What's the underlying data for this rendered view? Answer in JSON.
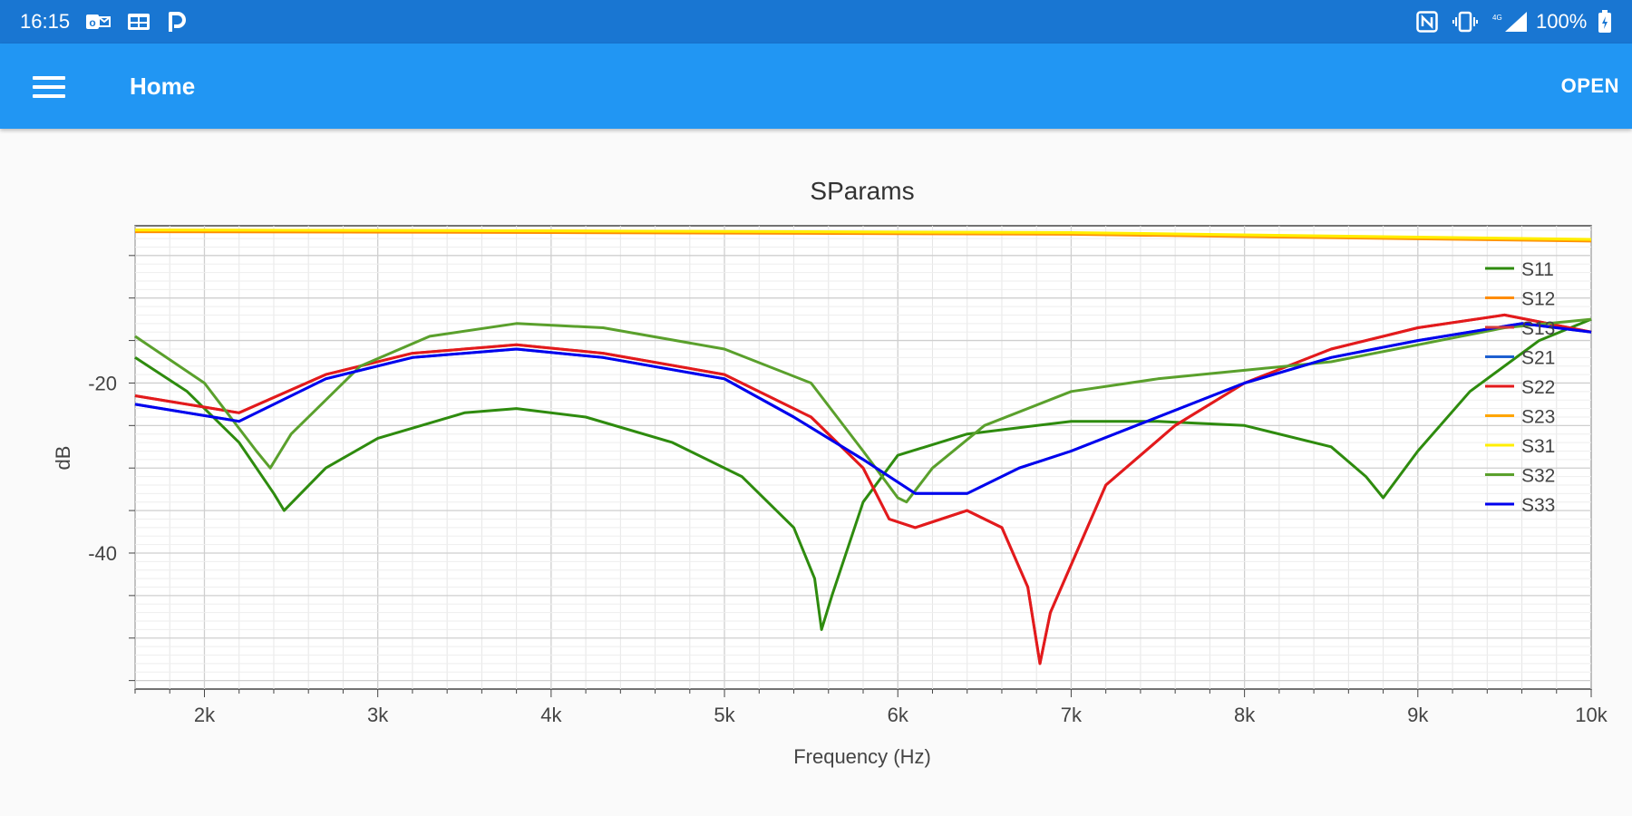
{
  "status_bar": {
    "time": "16:15",
    "battery": "100%",
    "left_icons": [
      "outlook-icon",
      "calendar-icon",
      "parking-icon"
    ],
    "right_icons": [
      "nfc-icon",
      "vibrate-icon",
      "signal-icon",
      "battery-icon"
    ]
  },
  "app_bar": {
    "title": "Home",
    "open_label": "OPEN",
    "menu_icon": "hamburger-menu-icon"
  },
  "chart_data": {
    "type": "line",
    "title": "SParams",
    "xlabel": "Frequency (Hz)",
    "ylabel": "dB",
    "x_ticks": [
      2000,
      3000,
      4000,
      5000,
      6000,
      7000,
      8000,
      9000,
      10000
    ],
    "x_tick_labels": [
      "2k",
      "3k",
      "4k",
      "5k",
      "6k",
      "7k",
      "8k",
      "9k",
      "10k"
    ],
    "y_ticks": [
      -20,
      -40
    ],
    "y_tick_labels": [
      "-20",
      "-40"
    ],
    "xlim": [
      1600,
      10000
    ],
    "ylim": [
      -56,
      -1.5
    ],
    "grid": true,
    "legend_position": "top-right",
    "series": [
      {
        "name": "S11",
        "color": "#2e8b0e",
        "x": [
          1600,
          1900,
          2200,
          2400,
          2460,
          2700,
          3000,
          3500,
          3800,
          4200,
          4700,
          5100,
          5400,
          5520,
          5560,
          5620,
          5800,
          6000,
          6400,
          7000,
          7500,
          8000,
          8500,
          8700,
          8800,
          9000,
          9300,
          9700,
          10000
        ],
        "y": [
          -17,
          -21,
          -27,
          -33,
          -35,
          -30,
          -26.5,
          -23.5,
          -23,
          -24,
          -27,
          -31,
          -37,
          -43,
          -49,
          -45,
          -34,
          -28.5,
          -26,
          -24.5,
          -24.5,
          -25,
          -27.5,
          -31,
          -33.5,
          -28,
          -21,
          -15,
          -12.5
        ]
      },
      {
        "name": "S12",
        "color": "#ff8c00",
        "x": [
          1600,
          4000,
          7000,
          10000
        ],
        "y": [
          -2.2,
          -2.3,
          -2.5,
          -3.3
        ]
      },
      {
        "name": "S13",
        "color": "#d43a3a",
        "x": [
          1600,
          2200,
          2700,
          3200,
          3800,
          4300,
          5000,
          5500,
          5800,
          5950,
          6100,
          6400,
          6600,
          6750,
          6820,
          6880,
          7200,
          7600,
          8000,
          8500,
          9000,
          9500,
          10000
        ],
        "y": [
          -21.5,
          -23.5,
          -19,
          -16.5,
          -15.5,
          -16.5,
          -19,
          -24,
          -30,
          -36,
          -37,
          -35,
          -37,
          -44,
          -53,
          -47,
          -32,
          -25,
          -20,
          -16,
          -13.5,
          -12,
          -14
        ]
      },
      {
        "name": "S21",
        "color": "#1e5fd0",
        "x": [
          1600,
          2200,
          2700,
          3200,
          3800,
          4300,
          5000,
          5400,
          5800,
          6100,
          6400,
          6700,
          7000,
          7500,
          8000,
          8500,
          9000,
          9600,
          10000
        ],
        "y": [
          -22.5,
          -24.5,
          -19.5,
          -17,
          -16,
          -17,
          -19.5,
          -24,
          -29,
          -33,
          -33,
          -30,
          -28,
          -24,
          -20,
          -17,
          -15,
          -13,
          -14
        ]
      },
      {
        "name": "S22",
        "color": "#e31a1c",
        "x": [
          1600,
          2200,
          2700,
          3200,
          3800,
          4300,
          5000,
          5500,
          5800,
          5950,
          6100,
          6400,
          6600,
          6750,
          6820,
          6880,
          7200,
          7600,
          8000,
          8500,
          9000,
          9500,
          10000
        ],
        "y": [
          -21.5,
          -23.5,
          -19,
          -16.5,
          -15.5,
          -16.5,
          -19,
          -24,
          -30,
          -36,
          -37,
          -35,
          -37,
          -44,
          -53,
          -47,
          -32,
          -25,
          -20,
          -16,
          -13.5,
          -12,
          -14
        ]
      },
      {
        "name": "S23",
        "color": "#ffa500",
        "x": [
          1600,
          4000,
          7000,
          10000
        ],
        "y": [
          -2.0,
          -2.1,
          -2.4,
          -3.2
        ]
      },
      {
        "name": "S31",
        "color": "#ffee00",
        "x": [
          1600,
          4000,
          7000,
          10000
        ],
        "y": [
          -2.0,
          -2.1,
          -2.3,
          -3.1
        ]
      },
      {
        "name": "S32",
        "color": "#5aa02c",
        "x": [
          1600,
          2000,
          2300,
          2380,
          2500,
          2900,
          3300,
          3800,
          4300,
          5000,
          5500,
          5800,
          6000,
          6050,
          6200,
          6500,
          7000,
          7500,
          8000,
          8500,
          9000,
          9500,
          10000
        ],
        "y": [
          -14.5,
          -20,
          -28,
          -30,
          -26,
          -18,
          -14.5,
          -13,
          -13.5,
          -16,
          -20,
          -28,
          -33.5,
          -34,
          -30,
          -25,
          -21,
          -19.5,
          -18.5,
          -17.5,
          -15.5,
          -13.5,
          -12.5
        ]
      },
      {
        "name": "S33",
        "color": "#0000ee",
        "x": [
          1600,
          2200,
          2700,
          3200,
          3800,
          4300,
          5000,
          5400,
          5800,
          6100,
          6400,
          6700,
          7000,
          7500,
          8000,
          8500,
          9000,
          9600,
          10000
        ],
        "y": [
          -22.5,
          -24.5,
          -19.5,
          -17,
          -16,
          -17,
          -19.5,
          -24,
          -29,
          -33,
          -33,
          -30,
          -28,
          -24,
          -20,
          -17,
          -15,
          -13,
          -14
        ]
      }
    ]
  }
}
